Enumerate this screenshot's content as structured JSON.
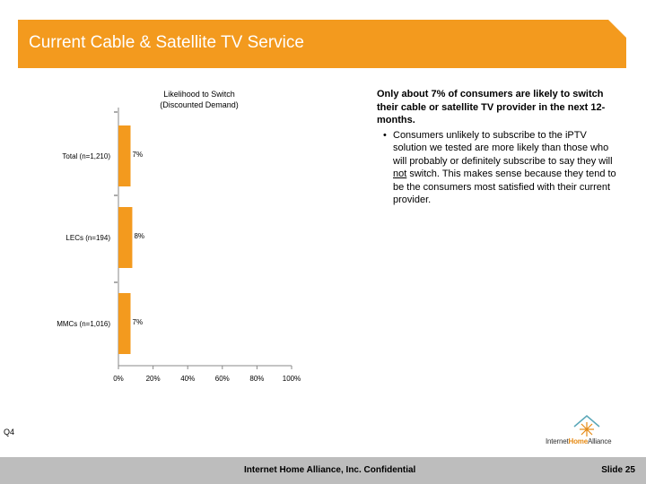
{
  "header": {
    "title": "Current Cable & Satellite TV Service",
    "band_color": "#f39a1e"
  },
  "chart_data": {
    "type": "bar",
    "orientation": "horizontal",
    "title": "Likelihood to Switch\n(Discounted Demand)",
    "categories": [
      "Total (n=1,210)",
      "LECs (n=194)",
      "MMCs (n=1,016)"
    ],
    "values": [
      7,
      8,
      7
    ],
    "value_labels": [
      "7%",
      "8%",
      "7%"
    ],
    "x_ticks": [
      "0%",
      "20%",
      "40%",
      "60%",
      "80%",
      "100%"
    ],
    "xlim": [
      0,
      100
    ],
    "bar_color": "#f39a1e",
    "grid": false
  },
  "commentary": {
    "headline": "Only about 7% of consumers are likely to switch their cable or satellite TV provider in the next 12-months.",
    "bullet_symbol": "•",
    "bullet_before": "Consumers unlikely to subscribe to the iPTV solution we tested are more likely than those who will probably or definitely subscribe to say they will ",
    "bullet_underlined": "not",
    "bullet_after": " switch. This makes sense because they tend to be the consumers most satisfied with their current provider."
  },
  "question_label": "Q4",
  "logo": {
    "icon": "house-sunburst-icon",
    "text_part1": "Internet",
    "text_part2": "Home",
    "text_part3": "Alliance"
  },
  "footer": {
    "confidential": "Internet Home Alliance, Inc. Confidential",
    "slide": "Slide 25"
  }
}
